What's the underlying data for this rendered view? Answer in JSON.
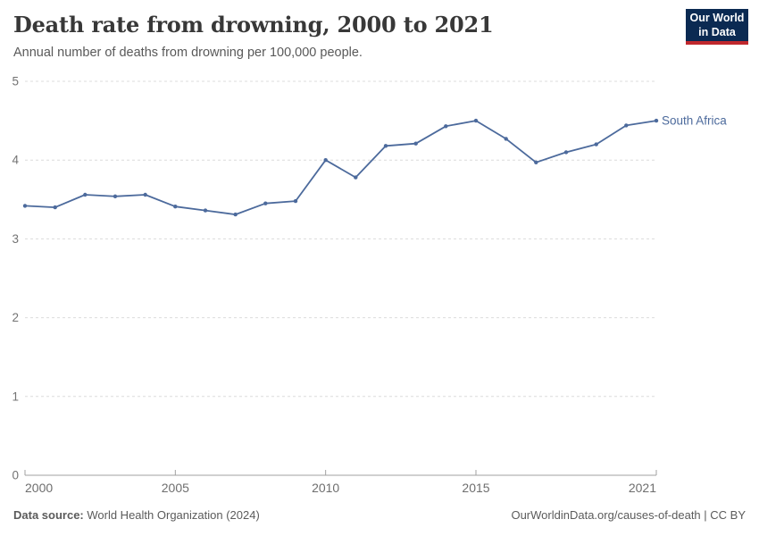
{
  "header": {
    "title": "Death rate from drowning, 2000 to 2021",
    "subtitle": "Annual number of deaths from drowning per 100,000 people.",
    "logo": {
      "line1": "Our World",
      "line2": "in Data"
    }
  },
  "chart_data": {
    "type": "line",
    "title": "Death rate from drowning, 2000 to 2021",
    "subtitle": "Annual number of deaths from drowning per 100,000 people.",
    "x": [
      2000,
      2001,
      2002,
      2003,
      2004,
      2005,
      2006,
      2007,
      2008,
      2009,
      2010,
      2011,
      2012,
      2013,
      2014,
      2015,
      2016,
      2017,
      2018,
      2019,
      2020,
      2021
    ],
    "series": [
      {
        "name": "South Africa",
        "color": "#4C6A9C",
        "values": [
          3.42,
          3.4,
          3.56,
          3.54,
          3.56,
          3.41,
          3.36,
          3.31,
          3.45,
          3.48,
          4.0,
          3.78,
          4.18,
          4.21,
          4.43,
          4.5,
          4.27,
          3.97,
          4.1,
          4.2,
          4.44,
          4.5
        ]
      }
    ],
    "xlabel": "",
    "ylabel": "",
    "ylim": [
      0,
      5
    ],
    "yticks": [
      0,
      1,
      2,
      3,
      4,
      5
    ],
    "xticks": [
      2000,
      2005,
      2010,
      2015,
      2021
    ],
    "grid": "horizontal-dashed",
    "legend_position": "end-of-line"
  },
  "colors": {
    "line": "#4C6A9C",
    "grid": "#dcdcdc",
    "axis": "#a1a1a1",
    "tick_label": "#737373",
    "logo_bg": "#0b2a52",
    "logo_stripe": "#c0282d"
  },
  "footer": {
    "source_label": "Data source:",
    "source_text": " World Health Organization (2024)",
    "credit": "OurWorldinData.org/causes-of-death | CC BY"
  }
}
